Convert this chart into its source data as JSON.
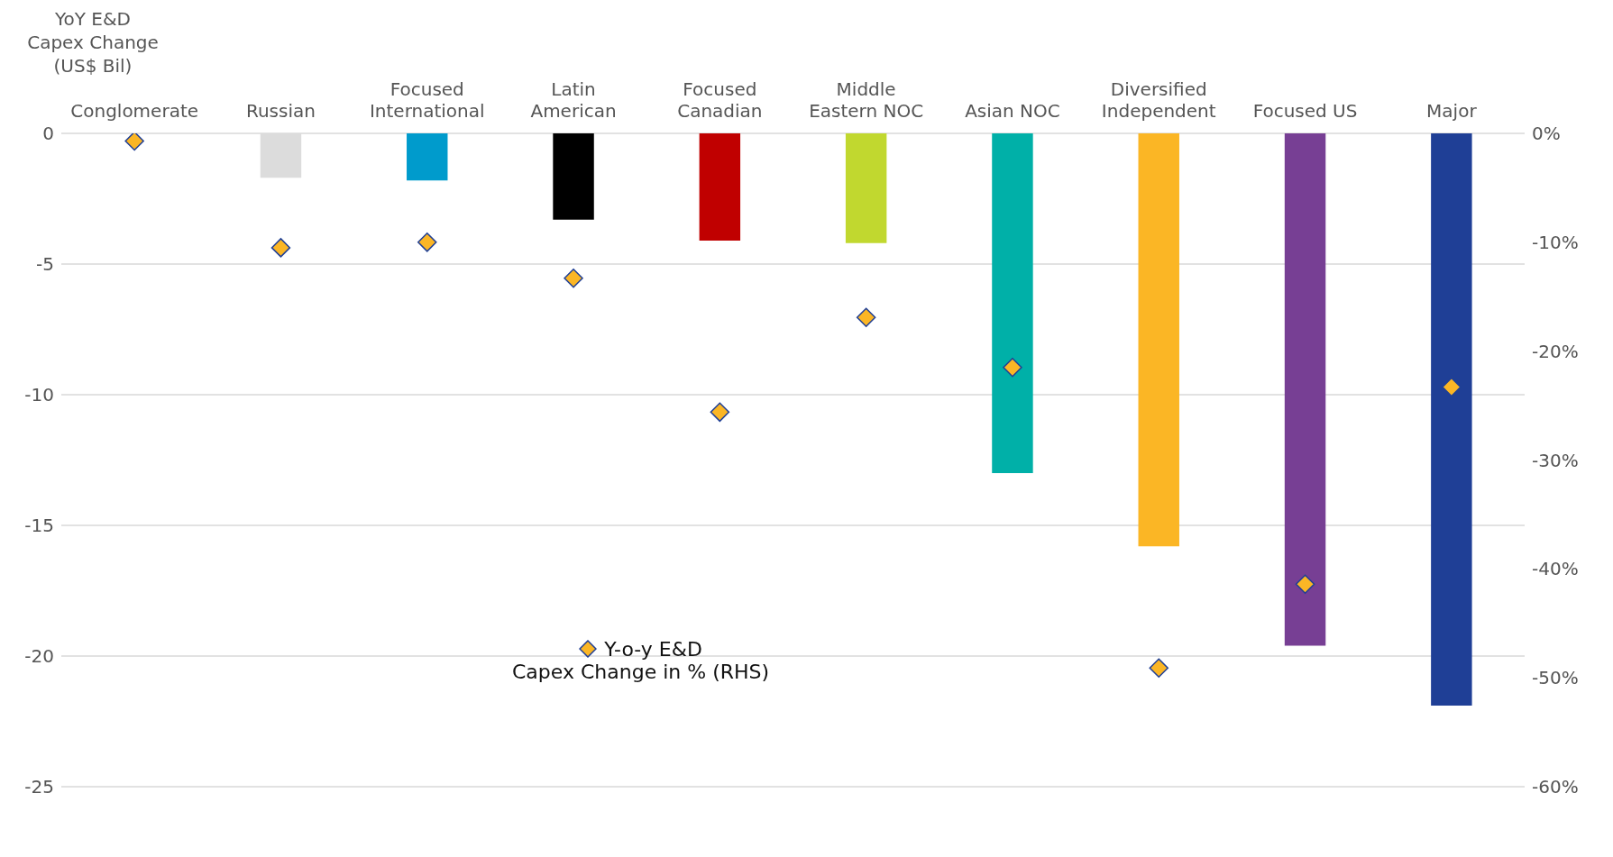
{
  "chart_data": {
    "type": "bar",
    "ylabel": "YoY E&D\nCapex Change\n(US$ Bil)",
    "categories": [
      "Conglomerate",
      "Russian",
      "Focused\nInternational",
      "Latin\nAmerican",
      "Focused\nCanadian",
      "Middle\nEastern NOC",
      "Asian NOC",
      "Diversified\nIndependent",
      "Focused US",
      "Major"
    ],
    "series": [
      {
        "colors": [
          "#dcdcdc",
          "#dcdcdc",
          "#009bcc",
          "#000000",
          "#c00000",
          "#c1d82f",
          "#00b0a8",
          "#fbb625",
          "#773f94",
          "#1f3f96"
        ],
        "values": [
          null,
          -1.7,
          -1.8,
          -3.3,
          -4.1,
          -4.2,
          -13.0,
          -15.8,
          -19.6,
          -21.9
        ]
      },
      {
        "type": "scatter",
        "name": "Y-o-y E&D\nCapex Change in % (RHS)",
        "axis": "y2",
        "color": "#fbb625",
        "marker": "diamond",
        "values": [
          -0.7,
          -10.5,
          -10.0,
          -13.3,
          -25.6,
          -16.9,
          -21.5,
          -49.1,
          -41.4,
          -23.3
        ]
      }
    ],
    "ylim": [
      -25,
      0
    ],
    "yticks": [
      0,
      -5,
      -10,
      -15,
      -20,
      -25
    ],
    "y2lim": [
      -60,
      0
    ],
    "y2ticks": [
      {
        "value": 0,
        "label": "0%"
      },
      {
        "value": -10,
        "label": "-10%"
      },
      {
        "value": -20,
        "label": "-20%"
      },
      {
        "value": -30,
        "label": "-30%"
      },
      {
        "value": -40,
        "label": "-40%"
      },
      {
        "value": -50,
        "label": "-50%"
      },
      {
        "value": -60,
        "label": "-60%"
      }
    ],
    "grid": "y",
    "legend": "bottom left"
  }
}
